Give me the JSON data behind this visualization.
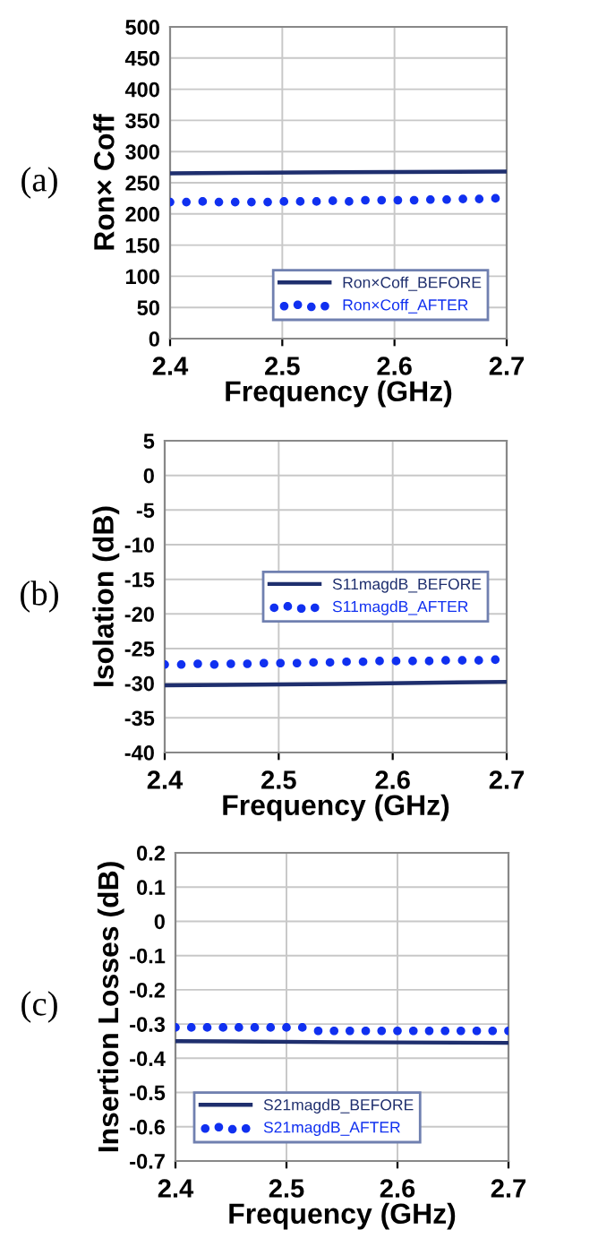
{
  "chart_data": [
    {
      "type": "line",
      "xlabel": "Frequency (GHz)",
      "ylabel": "Ron× Coff",
      "annotations": [
        "(a)"
      ],
      "xlim": [
        2.4,
        2.7
      ],
      "xticks": [
        2.4,
        2.5,
        2.6,
        2.7
      ],
      "ylim": [
        0,
        500
      ],
      "yticks": [
        0,
        50,
        100,
        150,
        200,
        250,
        300,
        350,
        400,
        450,
        500
      ],
      "grid": true,
      "legend": "bottom right",
      "series": [
        {
          "name": "Ron×Coff_BEFORE",
          "color": "#1f2f6e",
          "line_style": "solid",
          "marker": "none",
          "x": [
            2.4,
            2.55,
            2.7
          ],
          "values": [
            265,
            267,
            268
          ]
        },
        {
          "name": "Ron×Coff_AFTER",
          "type": "scatter",
          "color": "#1030f0",
          "marker": "circle",
          "x": [
            2.4,
            2.4145,
            2.429,
            2.4435,
            2.458,
            2.4725,
            2.487,
            2.5015,
            2.516,
            2.5305,
            2.545,
            2.5595,
            2.574,
            2.5885,
            2.603,
            2.6175,
            2.632,
            2.6465,
            2.661,
            2.6755,
            2.69
          ],
          "values": [
            219,
            219,
            220,
            219,
            219,
            219,
            219,
            220,
            220,
            220,
            221,
            220,
            222,
            222,
            222,
            222,
            223,
            223,
            224,
            224,
            225
          ]
        }
      ]
    },
    {
      "type": "line",
      "xlabel": "Frequency (GHz)",
      "ylabel": "Isolation (dB)",
      "annotations": [
        "(b)"
      ],
      "xlim": [
        2.4,
        2.7
      ],
      "xticks": [
        2.4,
        2.5,
        2.6,
        2.7
      ],
      "ylim": [
        -40,
        5
      ],
      "yticks": [
        -40,
        -35,
        -30,
        -25,
        -20,
        -15,
        -10,
        -5,
        0,
        5
      ],
      "grid": true,
      "legend": "right",
      "series": [
        {
          "name": "S11magdB_BEFORE",
          "color": "#1f2f6e",
          "line_style": "solid",
          "marker": "none",
          "x": [
            2.4,
            2.55,
            2.7
          ],
          "values": [
            -30.3,
            -30.1,
            -29.8
          ]
        },
        {
          "name": "S11magdB_AFTER",
          "type": "scatter",
          "color": "#1030f0",
          "marker": "circle",
          "x": [
            2.4,
            2.4145,
            2.429,
            2.4435,
            2.458,
            2.4725,
            2.487,
            2.5015,
            2.516,
            2.5305,
            2.545,
            2.5595,
            2.574,
            2.5885,
            2.603,
            2.6175,
            2.632,
            2.6465,
            2.661,
            2.6755,
            2.69
          ],
          "values": [
            -27.3,
            -27.3,
            -27.2,
            -27.3,
            -27.2,
            -27.2,
            -27.1,
            -27.1,
            -27.1,
            -27.0,
            -27.0,
            -26.9,
            -26.9,
            -26.8,
            -26.8,
            -26.8,
            -26.8,
            -26.7,
            -26.7,
            -26.7,
            -26.6
          ]
        }
      ]
    },
    {
      "type": "line",
      "xlabel": "Frequency (GHz)",
      "ylabel": "Insertion Losses (dB)",
      "annotations": [
        "(c)"
      ],
      "xlim": [
        2.4,
        2.7
      ],
      "xticks": [
        2.4,
        2.5,
        2.6,
        2.7
      ],
      "ylim": [
        -0.7,
        0.2
      ],
      "yticks": [
        -0.7,
        -0.6,
        -0.5,
        -0.4,
        -0.3,
        -0.2,
        -0.1,
        0,
        0.1,
        0.2
      ],
      "grid": true,
      "legend": "bottom left",
      "series": [
        {
          "name": "S21magdB_BEFORE",
          "color": "#1f2f6e",
          "line_style": "solid",
          "marker": "none",
          "x": [
            2.4,
            2.55,
            2.7
          ],
          "values": [
            -0.35,
            -0.353,
            -0.355
          ]
        },
        {
          "name": "S21magdB_AFTER",
          "type": "scatter",
          "color": "#1030f0",
          "marker": "circle",
          "x": [
            2.4,
            2.4143,
            2.4286,
            2.4429,
            2.4571,
            2.4714,
            2.4857,
            2.5,
            2.5143,
            2.5286,
            2.5429,
            2.5571,
            2.5714,
            2.5857,
            2.6,
            2.6143,
            2.6286,
            2.6429,
            2.6571,
            2.6714,
            2.6857,
            2.7
          ],
          "values": [
            -0.31,
            -0.31,
            -0.31,
            -0.31,
            -0.31,
            -0.31,
            -0.31,
            -0.31,
            -0.31,
            -0.32,
            -0.32,
            -0.32,
            -0.32,
            -0.32,
            -0.32,
            -0.32,
            -0.32,
            -0.32,
            -0.32,
            -0.32,
            -0.32,
            -0.32
          ]
        }
      ]
    }
  ]
}
